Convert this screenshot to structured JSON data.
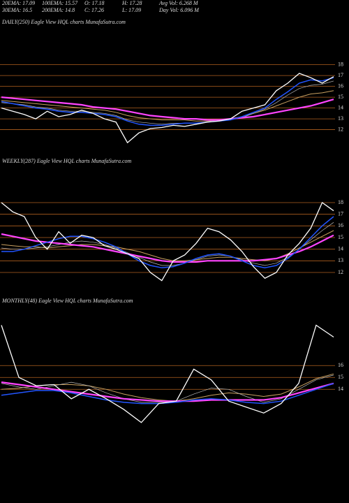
{
  "header": {
    "items": [
      "20EMA: 17.09",
      "100EMA: 15.57",
      "O: 17.18",
      "H: 17.28",
      "Avg Vol: 6.268  M",
      "30EMA: 16.5",
      "200EMA: 14.8",
      "C: 17.26",
      "L: 17.09",
      "Day Vol: 6.096  M"
    ]
  },
  "chart_data": [
    {
      "type": "line",
      "title": "DAILY(250) Eagle  View  HQL  charts MunafaSutra.com",
      "ylim": [
        10.1,
        21.4
      ],
      "yticks": [
        18,
        17,
        16,
        15,
        14,
        13,
        12
      ],
      "series": [
        {
          "color": "#c8a060",
          "values": [
            14.7,
            14.6,
            14.5,
            14.4,
            14.3,
            14.2,
            14.1,
            14.0,
            13.9,
            13.8,
            13.6,
            13.3,
            13.1,
            13.0,
            12.9,
            12.9,
            12.9,
            12.8,
            12.8,
            12.9,
            13.0,
            13.2,
            13.5,
            13.8,
            14.2,
            14.6,
            15.0,
            15.3,
            15.4,
            15.6
          ]
        },
        {
          "color": "#bbbbbb",
          "values": [
            14.5,
            14.4,
            14.3,
            14.1,
            14.0,
            13.8,
            13.7,
            13.7,
            13.6,
            13.5,
            13.3,
            12.9,
            12.7,
            12.6,
            12.5,
            12.6,
            12.6,
            12.6,
            12.7,
            12.8,
            12.9,
            13.1,
            13.5,
            13.9,
            14.5,
            15.2,
            15.8,
            16.1,
            16.2,
            16.5
          ]
        },
        {
          "color": "#ff44ff",
          "values": [
            15.0,
            14.9,
            14.8,
            14.7,
            14.6,
            14.5,
            14.4,
            14.3,
            14.1,
            14.0,
            13.9,
            13.7,
            13.5,
            13.3,
            13.2,
            13.1,
            13.0,
            13.0,
            12.9,
            12.9,
            13.0,
            13.1,
            13.2,
            13.4,
            13.6,
            13.8,
            14.0,
            14.2,
            14.5,
            14.8
          ]
        },
        {
          "color": "#2255ff",
          "values": [
            14.6,
            14.4,
            14.2,
            14.0,
            13.9,
            13.7,
            13.6,
            13.6,
            13.5,
            13.4,
            13.2,
            12.8,
            12.5,
            12.4,
            12.4,
            12.5,
            12.6,
            12.6,
            12.7,
            12.8,
            12.9,
            13.2,
            13.6,
            14.0,
            14.8,
            15.5,
            16.3,
            16.6,
            16.5,
            16.8
          ]
        },
        {
          "color": "#ffffff",
          "values": [
            14.0,
            13.7,
            13.4,
            13.0,
            13.7,
            13.2,
            13.4,
            13.8,
            13.5,
            13.0,
            12.7,
            10.8,
            11.7,
            12.1,
            12.2,
            12.4,
            12.3,
            12.5,
            12.7,
            12.8,
            13.0,
            13.7,
            14.0,
            14.3,
            15.6,
            16.3,
            17.2,
            16.8,
            16.3,
            16.9
          ]
        }
      ]
    },
    {
      "type": "line",
      "title": "WEEKLY(287) Eagle  View  HQL  charts MunafaSutra.com",
      "ylim": [
        10.2,
        21.0
      ],
      "yticks": [
        18,
        17,
        16,
        15,
        14,
        13,
        12
      ],
      "series": [
        {
          "color": "#c8a060",
          "values": [
            14.4,
            14.3,
            14.2,
            14.2,
            14.1,
            14.2,
            14.3,
            14.4,
            14.4,
            14.3,
            14.2,
            14.0,
            13.8,
            13.5,
            13.2,
            13.0,
            13.0,
            13.1,
            13.2,
            13.3,
            13.3,
            13.2,
            13.1,
            13.0,
            13.2,
            13.6,
            14.1,
            14.6,
            15.1,
            15.6
          ]
        },
        {
          "color": "#bbbbbb",
          "values": [
            14.1,
            14.0,
            14.0,
            14.1,
            14.2,
            14.4,
            14.6,
            14.7,
            14.6,
            14.4,
            14.1,
            13.7,
            13.3,
            12.9,
            12.6,
            12.6,
            12.8,
            13.1,
            13.4,
            13.5,
            13.4,
            13.1,
            12.8,
            12.6,
            12.8,
            13.3,
            14.0,
            14.8,
            15.6,
            16.3
          ]
        },
        {
          "color": "#ff44ff",
          "values": [
            15.3,
            15.1,
            14.9,
            14.7,
            14.6,
            14.5,
            14.4,
            14.3,
            14.2,
            14.0,
            13.8,
            13.6,
            13.4,
            13.2,
            13.0,
            12.9,
            12.9,
            12.9,
            13.0,
            13.0,
            13.0,
            13.0,
            13.0,
            13.1,
            13.2,
            13.5,
            13.8,
            14.2,
            14.7,
            15.2
          ]
        },
        {
          "color": "#2255ff",
          "values": [
            13.8,
            13.8,
            14.0,
            14.3,
            14.6,
            14.9,
            15.1,
            15.1,
            14.9,
            14.6,
            14.2,
            13.6,
            13.0,
            12.6,
            12.4,
            12.5,
            12.8,
            13.2,
            13.5,
            13.6,
            13.4,
            13.0,
            12.6,
            12.4,
            12.6,
            13.2,
            14.0,
            15.0,
            16.0,
            16.8
          ]
        },
        {
          "color": "#ffffff",
          "values": [
            18.0,
            17.2,
            16.8,
            15.0,
            14.0,
            15.5,
            14.5,
            15.2,
            15.0,
            14.3,
            14.0,
            13.6,
            13.2,
            12.0,
            11.3,
            13.0,
            13.5,
            14.5,
            15.8,
            15.5,
            14.8,
            13.8,
            12.5,
            11.5,
            12.0,
            13.5,
            14.5,
            15.8,
            18.0,
            17.3
          ]
        }
      ]
    },
    {
      "type": "line",
      "title": "MONTHLY(48) Eagle  View  HQL  charts MunafaSutra.com",
      "ylim": [
        5.6,
        20.9
      ],
      "yticks": [
        16,
        15,
        14
      ],
      "series": [
        {
          "color": "#c8a060",
          "values": [
            14.0,
            14.1,
            14.3,
            14.4,
            14.4,
            14.3,
            14.0,
            13.6,
            13.3,
            13.1,
            13.0,
            13.2,
            13.5,
            13.7,
            13.6,
            13.4,
            13.6,
            14.2,
            14.9,
            15.3
          ]
        },
        {
          "color": "#bbbbbb",
          "values": [
            14.5,
            14.2,
            14.0,
            14.3,
            14.6,
            14.3,
            13.7,
            13.2,
            12.9,
            12.9,
            13.0,
            13.6,
            14.1,
            14.0,
            13.4,
            12.9,
            13.2,
            14.0,
            14.8,
            15.2
          ]
        },
        {
          "color": "#ff44ff",
          "values": [
            14.6,
            14.4,
            14.2,
            14.0,
            13.8,
            13.6,
            13.4,
            13.2,
            13.1,
            13.0,
            13.0,
            13.0,
            13.1,
            13.1,
            13.1,
            13.1,
            13.3,
            13.7,
            14.1,
            14.5
          ]
        },
        {
          "color": "#2255ff",
          "values": [
            13.5,
            13.7,
            13.9,
            13.9,
            13.7,
            13.4,
            13.1,
            12.9,
            12.8,
            12.8,
            12.9,
            13.1,
            13.2,
            13.1,
            12.9,
            12.8,
            13.0,
            13.5,
            14.0,
            14.5
          ]
        },
        {
          "color": "#ffffff",
          "values": [
            19.4,
            15.0,
            14.3,
            14.4,
            13.2,
            14.0,
            13.2,
            12.3,
            11.2,
            12.8,
            13.0,
            15.7,
            14.8,
            13.0,
            12.5,
            12.0,
            12.8,
            14.5,
            19.4,
            18.4
          ]
        }
      ]
    }
  ]
}
